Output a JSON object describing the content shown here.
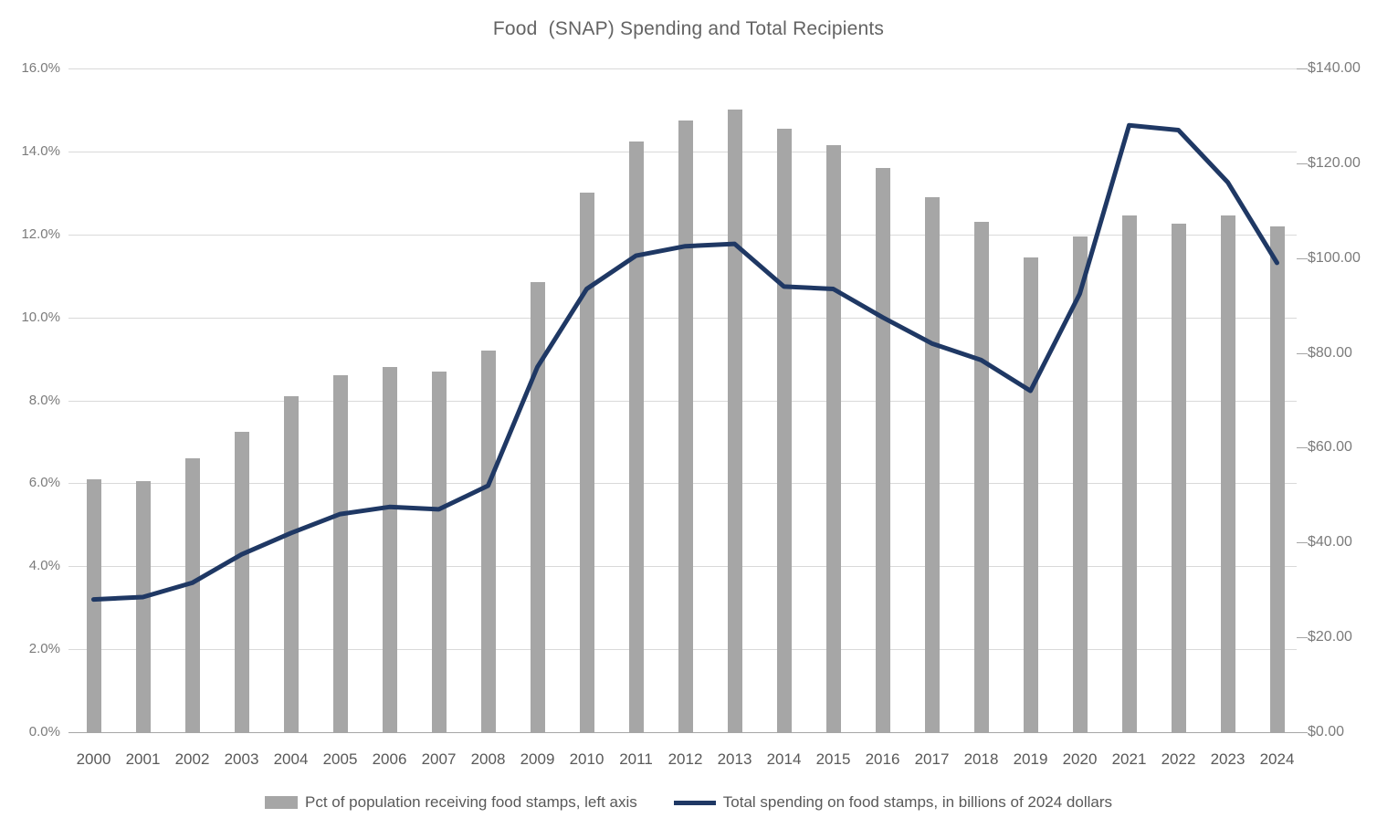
{
  "title": "Food  (SNAP) Spending and Total Recipients",
  "colors": {
    "bar": "#a6a6a6",
    "line": "#1f3864",
    "gridline": "#d9d9d9",
    "axis_text": "#7b7b7b",
    "x_axis_text": "#595959",
    "title_text": "#636363"
  },
  "legend": {
    "bar_label": "Pct of population receiving food stamps, left axis",
    "line_label": "Total spending on food stamps, in billions of 2024 dollars"
  },
  "left_axis": {
    "min": 0,
    "max": 16,
    "step": 2,
    "tick_labels": [
      "0.0%",
      "2.0%",
      "4.0%",
      "6.0%",
      "8.0%",
      "10.0%",
      "12.0%",
      "14.0%",
      "16.0%"
    ]
  },
  "right_axis": {
    "min": 0,
    "max": 140,
    "step": 20,
    "tick_labels": [
      "$0.00",
      "$20.00",
      "$40.00",
      "$60.00",
      "$80.00",
      "$100.00",
      "$120.00",
      "$140.00"
    ]
  },
  "chart_data": {
    "type": "bar",
    "title": "Food  (SNAP) Spending and Total Recipients",
    "categories": [
      2000,
      2001,
      2002,
      2003,
      2004,
      2005,
      2006,
      2007,
      2008,
      2009,
      2010,
      2011,
      2012,
      2013,
      2014,
      2015,
      2016,
      2017,
      2018,
      2019,
      2020,
      2021,
      2022,
      2023,
      2024
    ],
    "series": [
      {
        "name": "Pct of population receiving food stamps, left axis",
        "type": "bar",
        "axis": "left",
        "unit": "percent of population",
        "values": [
          6.1,
          6.05,
          6.6,
          7.25,
          8.1,
          8.6,
          8.8,
          8.7,
          9.2,
          10.85,
          13.0,
          14.25,
          14.75,
          15.0,
          14.55,
          14.15,
          13.6,
          12.9,
          12.3,
          11.45,
          11.95,
          12.45,
          12.25,
          12.45,
          12.2
        ]
      },
      {
        "name": "Total spending on food stamps, in billions of 2024 dollars",
        "type": "line",
        "axis": "right",
        "unit": "billions of 2024 dollars",
        "values": [
          28,
          28.5,
          31.5,
          37.5,
          42,
          46,
          47.5,
          47,
          52,
          77,
          93.5,
          100.5,
          102.5,
          103,
          94,
          93.5,
          87.5,
          82,
          78.5,
          72,
          92.5,
          128,
          127,
          116,
          99
        ]
      }
    ],
    "left_ylim": [
      0,
      16
    ],
    "right_ylim": [
      0,
      140
    ],
    "grid": "horizontal",
    "legend_position": "bottom"
  }
}
